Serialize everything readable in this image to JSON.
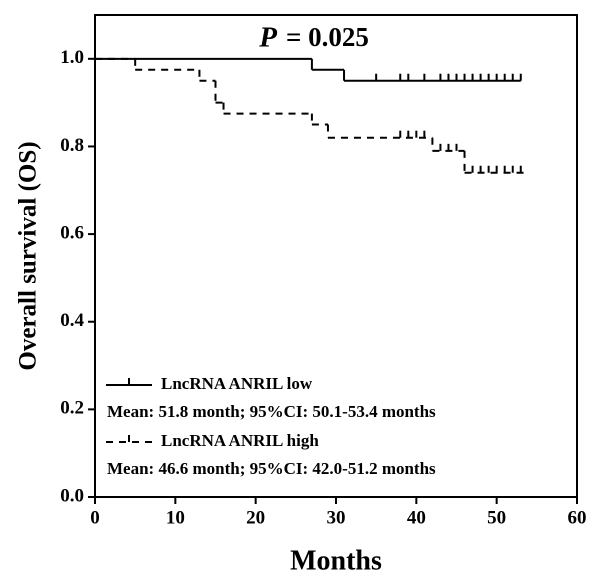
{
  "chart_data": {
    "type": "km",
    "p_label": "P",
    "p_value": "= 0.025",
    "x_label": "Months",
    "y_label": "Overall survival (OS)",
    "xlim": [
      0,
      60
    ],
    "xticks": [
      0,
      10,
      20,
      30,
      40,
      50,
      60
    ],
    "ylim": [
      0,
      1.1
    ],
    "yticks": [
      {
        "value": 0,
        "label": "0.0"
      },
      {
        "value": 0.2,
        "label": "0.2"
      },
      {
        "value": 0.4,
        "label": "0.4"
      },
      {
        "value": 0.6,
        "label": "0.6"
      },
      {
        "value": 0.8,
        "label": "0.8"
      },
      {
        "value": 1,
        "label": "1.0"
      }
    ],
    "series": [
      {
        "name": "LncRNA ANRIL low",
        "note": "Mean: 51.8 month; 95%CI: 50.1-53.4 months",
        "color": "#000000",
        "dashed": false,
        "x": [
          0,
          27,
          31,
          53
        ],
        "values": [
          1.0,
          0.975,
          0.95,
          0.95
        ],
        "censored_x": [
          35,
          38,
          39,
          41,
          43,
          44,
          45,
          46,
          47,
          48,
          49,
          50,
          51,
          52,
          53
        ],
        "censored_values": [
          0.95,
          0.95,
          0.95,
          0.95,
          0.95,
          0.95,
          0.95,
          0.95,
          0.95,
          0.95,
          0.95,
          0.95,
          0.95,
          0.95,
          0.95
        ]
      },
      {
        "name": "LncRNA ANRIL high",
        "note": "Mean: 46.6 month; 95%CI: 42.0-51.2 months",
        "color": "#000000",
        "dashed": true,
        "x": [
          0,
          5,
          13,
          15,
          16,
          27,
          29,
          42,
          46,
          54
        ],
        "values": [
          1.0,
          0.975,
          0.95,
          0.9,
          0.875,
          0.85,
          0.82,
          0.79,
          0.74,
          0.74
        ],
        "censored_x": [
          38,
          39,
          40,
          41,
          43,
          44,
          45,
          47,
          48,
          49,
          50,
          51,
          52,
          53
        ],
        "censored_values": [
          0.82,
          0.82,
          0.82,
          0.82,
          0.79,
          0.79,
          0.79,
          0.74,
          0.74,
          0.74,
          0.74,
          0.74,
          0.74,
          0.74
        ]
      }
    ]
  }
}
